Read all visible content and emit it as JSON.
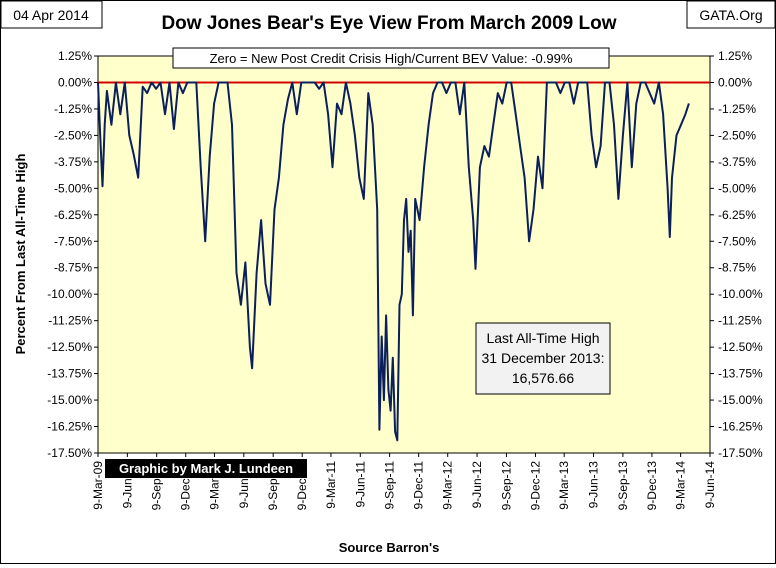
{
  "header": {
    "date": "04 Apr 2014",
    "source": "GATA.Org"
  },
  "chart_data": {
    "type": "line",
    "title": "Dow Jones Bear's Eye View From March 2009 Low",
    "subtitle": "Zero = New Post Credit Crisis High/Current BEV Value:  -0.99%",
    "xlabel": "Source Barron's",
    "ylabel": "Percent From Last All-Time High",
    "ylim": [
      -17.5,
      1.25
    ],
    "y_ticks": [
      "1.25%",
      "0.00%",
      "-1.25%",
      "-2.50%",
      "-3.75%",
      "-5.00%",
      "-6.25%",
      "-7.50%",
      "-8.75%",
      "-10.00%",
      "-11.25%",
      "-12.50%",
      "-13.75%",
      "-15.00%",
      "-16.25%",
      "-17.50%"
    ],
    "x_ticks": [
      "9-Mar-09",
      "9-Jun-09",
      "9-Sep-09",
      "9-Dec-09",
      "9-Mar-10",
      "9-Jun-10",
      "9-Sep-10",
      "9-Dec-10",
      "9-Mar-11",
      "9-Jun-11",
      "9-Sep-11",
      "9-Dec-11",
      "9-Mar-12",
      "9-Jun-12",
      "9-Sep-12",
      "9-Dec-12",
      "9-Mar-13",
      "9-Jun-13",
      "9-Sep-13",
      "9-Dec-13",
      "9-Mar-14",
      "9-Jun-14"
    ],
    "line_color": "#0a1f5c",
    "zero_line_color": "#d40000",
    "annotation": [
      "Last All-Time High",
      "31 December 2013:",
      "16,576.66"
    ],
    "credit": "Graphic by Mark J. Lundeen",
    "series": [
      {
        "values": [
          [
            "9-Mar-09",
            0
          ],
          [
            "16-Mar-09",
            -2.5
          ],
          [
            "23-Mar-09",
            -4.9
          ],
          [
            "30-Mar-09",
            -2.0
          ],
          [
            "6-Apr-09",
            -0.4
          ],
          [
            "20-Apr-09",
            -2.0
          ],
          [
            "4-May-09",
            0
          ],
          [
            "18-May-09",
            -1.5
          ],
          [
            "1-Jun-09",
            0
          ],
          [
            "15-Jun-09",
            -2.5
          ],
          [
            "29-Jun-09",
            -3.4
          ],
          [
            "13-Jul-09",
            -4.5
          ],
          [
            "27-Jul-09",
            -0.2
          ],
          [
            "10-Aug-09",
            -0.5
          ],
          [
            "24-Aug-09",
            0
          ],
          [
            "7-Sep-09",
            -0.3
          ],
          [
            "21-Sep-09",
            0
          ],
          [
            "5-Oct-09",
            -1.5
          ],
          [
            "19-Oct-09",
            0
          ],
          [
            "2-Nov-09",
            -2.2
          ],
          [
            "16-Nov-09",
            0
          ],
          [
            "30-Nov-09",
            -0.5
          ],
          [
            "14-Dec-09",
            0
          ],
          [
            "28-Dec-09",
            0
          ],
          [
            "11-Jan-10",
            0
          ],
          [
            "25-Jan-10",
            -4.0
          ],
          [
            "8-Feb-10",
            -7.5
          ],
          [
            "22-Feb-10",
            -3.5
          ],
          [
            "8-Mar-10",
            -1.0
          ],
          [
            "22-Mar-10",
            0
          ],
          [
            "5-Apr-10",
            0
          ],
          [
            "19-Apr-10",
            0
          ],
          [
            "3-May-10",
            -2.0
          ],
          [
            "17-May-10",
            -9.0
          ],
          [
            "31-May-10",
            -10.5
          ],
          [
            "14-Jun-10",
            -8.5
          ],
          [
            "28-Jun-10",
            -12.5
          ],
          [
            "5-Jul-10",
            -13.5
          ],
          [
            "19-Jul-10",
            -9.0
          ],
          [
            "2-Aug-10",
            -6.5
          ],
          [
            "16-Aug-10",
            -9.5
          ],
          [
            "30-Aug-10",
            -10.5
          ],
          [
            "13-Sep-10",
            -6.0
          ],
          [
            "27-Sep-10",
            -4.5
          ],
          [
            "11-Oct-10",
            -2.0
          ],
          [
            "25-Oct-10",
            -0.8
          ],
          [
            "8-Nov-10",
            0
          ],
          [
            "22-Nov-10",
            -1.5
          ],
          [
            "6-Dec-10",
            0
          ],
          [
            "20-Dec-10",
            0
          ],
          [
            "3-Jan-11",
            0
          ],
          [
            "17-Jan-11",
            0
          ],
          [
            "31-Jan-11",
            -0.3
          ],
          [
            "14-Feb-11",
            0
          ],
          [
            "28-Feb-11",
            -1.5
          ],
          [
            "14-Mar-11",
            -4.0
          ],
          [
            "28-Mar-11",
            -1.0
          ],
          [
            "11-Apr-11",
            -1.5
          ],
          [
            "25-Apr-11",
            0
          ],
          [
            "9-May-11",
            -1.0
          ],
          [
            "23-May-11",
            -2.5
          ],
          [
            "6-Jun-11",
            -4.5
          ],
          [
            "20-Jun-11",
            -5.5
          ],
          [
            "4-Jul-11",
            -0.5
          ],
          [
            "18-Jul-11",
            -2.0
          ],
          [
            "1-Aug-11",
            -6.0
          ],
          [
            "8-Aug-11",
            -16.4
          ],
          [
            "15-Aug-11",
            -12.0
          ],
          [
            "22-Aug-11",
            -15.0
          ],
          [
            "29-Aug-11",
            -11.0
          ],
          [
            "5-Sep-11",
            -14.5
          ],
          [
            "12-Sep-11",
            -15.5
          ],
          [
            "19-Sep-11",
            -13.0
          ],
          [
            "26-Sep-11",
            -16.5
          ],
          [
            "3-Oct-11",
            -16.9
          ],
          [
            "10-Oct-11",
            -10.5
          ],
          [
            "17-Oct-11",
            -10.0
          ],
          [
            "24-Oct-11",
            -6.5
          ],
          [
            "31-Oct-11",
            -5.5
          ],
          [
            "7-Nov-11",
            -8.0
          ],
          [
            "14-Nov-11",
            -7.0
          ],
          [
            "21-Nov-11",
            -11.0
          ],
          [
            "28-Nov-11",
            -5.5
          ],
          [
            "12-Dec-11",
            -6.5
          ],
          [
            "26-Dec-11",
            -4.0
          ],
          [
            "9-Jan-12",
            -2.0
          ],
          [
            "23-Jan-12",
            -0.5
          ],
          [
            "6-Feb-12",
            0
          ],
          [
            "20-Feb-12",
            0
          ],
          [
            "5-Mar-12",
            -0.5
          ],
          [
            "19-Mar-12",
            0
          ],
          [
            "2-Apr-12",
            0
          ],
          [
            "16-Apr-12",
            -1.5
          ],
          [
            "30-Apr-12",
            0
          ],
          [
            "14-May-12",
            -4.0
          ],
          [
            "28-May-12",
            -6.5
          ],
          [
            "4-Jun-12",
            -8.8
          ],
          [
            "18-Jun-12",
            -4.0
          ],
          [
            "2-Jul-12",
            -3.0
          ],
          [
            "16-Jul-12",
            -3.5
          ],
          [
            "30-Jul-12",
            -2.0
          ],
          [
            "13-Aug-12",
            -0.5
          ],
          [
            "27-Aug-12",
            -1.0
          ],
          [
            "10-Sep-12",
            0
          ],
          [
            "24-Sep-12",
            0
          ],
          [
            "8-Oct-12",
            -1.5
          ],
          [
            "22-Oct-12",
            -3.0
          ],
          [
            "5-Nov-12",
            -4.5
          ],
          [
            "19-Nov-12",
            -7.5
          ],
          [
            "3-Dec-12",
            -6.0
          ],
          [
            "17-Dec-12",
            -3.5
          ],
          [
            "31-Dec-12",
            -5.0
          ],
          [
            "14-Jan-13",
            0
          ],
          [
            "28-Jan-13",
            0
          ],
          [
            "11-Feb-13",
            0
          ],
          [
            "25-Feb-13",
            -0.5
          ],
          [
            "11-Mar-13",
            0
          ],
          [
            "25-Mar-13",
            0
          ],
          [
            "8-Apr-13",
            -1.0
          ],
          [
            "22-Apr-13",
            0
          ],
          [
            "6-May-13",
            0
          ],
          [
            "20-May-13",
            0
          ],
          [
            "3-Jun-13",
            -2.5
          ],
          [
            "17-Jun-13",
            -4.0
          ],
          [
            "1-Jul-13",
            -3.0
          ],
          [
            "15-Jul-13",
            0
          ],
          [
            "29-Jul-13",
            0
          ],
          [
            "12-Aug-13",
            -2.0
          ],
          [
            "26-Aug-13",
            -5.5
          ],
          [
            "9-Sep-13",
            -2.5
          ],
          [
            "23-Sep-13",
            0
          ],
          [
            "7-Oct-13",
            -4.0
          ],
          [
            "21-Oct-13",
            -1.0
          ],
          [
            "4-Nov-13",
            0
          ],
          [
            "18-Nov-13",
            0
          ],
          [
            "2-Dec-13",
            -0.5
          ],
          [
            "16-Dec-13",
            -1.0
          ],
          [
            "31-Dec-13",
            0
          ],
          [
            "13-Jan-14",
            -1.5
          ],
          [
            "27-Jan-14",
            -5.0
          ],
          [
            "3-Feb-14",
            -7.3
          ],
          [
            "10-Feb-14",
            -4.5
          ],
          [
            "24-Feb-14",
            -2.5
          ],
          [
            "10-Mar-14",
            -2.0
          ],
          [
            "24-Mar-14",
            -1.5
          ],
          [
            "4-Apr-14",
            -0.99
          ]
        ]
      }
    ]
  }
}
